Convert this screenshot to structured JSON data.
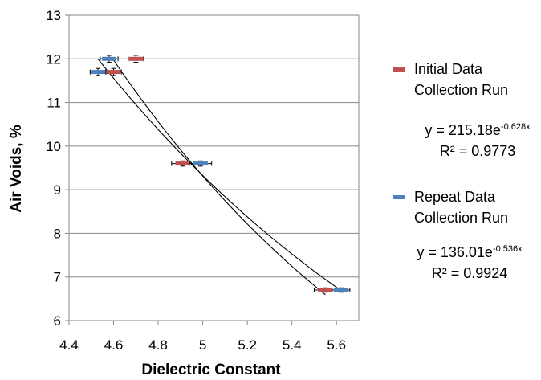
{
  "chart_data": {
    "type": "scatter",
    "title": "",
    "xlabel": "Dielectric Constant",
    "ylabel": "Air Voids, %",
    "xlim": [
      4.4,
      5.7
    ],
    "ylim": [
      6,
      13
    ],
    "x_ticks": [
      "4.4",
      "4.6",
      "4.8",
      "5",
      "5.2",
      "5.4",
      "5.6"
    ],
    "y_ticks": [
      "6",
      "7",
      "8",
      "9",
      "10",
      "11",
      "12",
      "13"
    ],
    "grid": "horizontal",
    "legend_position": "right",
    "series": [
      {
        "name": "Initial Data Collection Run",
        "label_line1": "Initial Data",
        "label_line2": "Collection Run",
        "color": "#C0504D",
        "points": [
          {
            "x": 4.7,
            "y": 12.0,
            "xerr": 0.035,
            "yerr": 0.08
          },
          {
            "x": 4.6,
            "y": 11.7,
            "xerr": 0.035,
            "yerr": 0.08
          },
          {
            "x": 4.91,
            "y": 9.6,
            "xerr": 0.05,
            "yerr": 0.06
          },
          {
            "x": 5.55,
            "y": 6.7,
            "xerr": 0.05,
            "yerr": 0.05
          }
        ],
        "trendline": {
          "type": "exponential",
          "a": 215.18,
          "b": -0.628
        },
        "equation_prefix": "y = 215.18e",
        "equation_exp": "-0.628x",
        "r2": "R² = 0.9773"
      },
      {
        "name": "Repeat Data Collection Run",
        "label_line1": "Repeat Data",
        "label_line2": "Collection Run",
        "color": "#4F81BD",
        "points": [
          {
            "x": 4.58,
            "y": 12.0,
            "xerr": 0.04,
            "yerr": 0.08
          },
          {
            "x": 4.53,
            "y": 11.7,
            "xerr": 0.035,
            "yerr": 0.08
          },
          {
            "x": 4.99,
            "y": 9.6,
            "xerr": 0.05,
            "yerr": 0.06
          },
          {
            "x": 5.62,
            "y": 6.7,
            "xerr": 0.04,
            "yerr": 0.05
          }
        ],
        "trendline": {
          "type": "exponential",
          "a": 136.01,
          "b": -0.536
        },
        "equation_prefix": "y = 136.01e",
        "equation_exp": "-0.536x",
        "r2": "R² = 0.9924"
      }
    ]
  }
}
